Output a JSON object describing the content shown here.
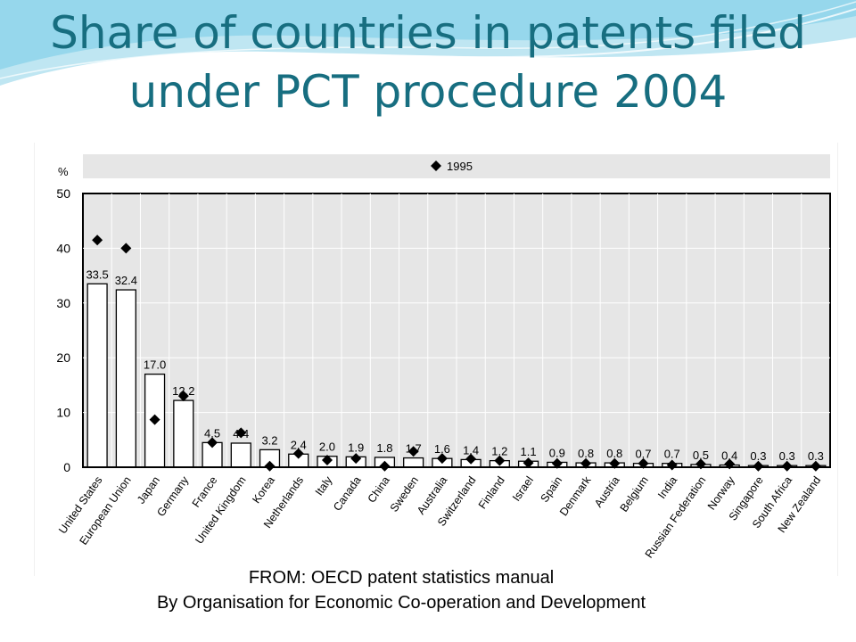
{
  "title_lines": [
    "Share of countries in patents filed",
    "under PCT procedure  2004"
  ],
  "source_lines": [
    "FROM: OECD patent statistics manual",
    "By Organisation for Economic Co-operation and Development"
  ],
  "colors": {
    "title": "#176e80",
    "bar_fill": "#ffffff",
    "bar_stroke": "#000000",
    "plot_bg": "#e6e6e6",
    "marker": "#000000",
    "wave_light": "#bfe6f2",
    "wave_mid": "#7fd0e8"
  },
  "chart_data": {
    "type": "bar",
    "y_unit_label": "%",
    "ylim": [
      0,
      50
    ],
    "yticks": [
      0,
      10,
      20,
      30,
      40,
      50
    ],
    "grid": true,
    "legend": {
      "position": "top",
      "entries": [
        {
          "marker": "diamond",
          "label": "1995"
        }
      ]
    },
    "categories": [
      "United States",
      "European Union",
      "Japan",
      "Germany",
      "France",
      "United Kingdom",
      "Korea",
      "Netherlands",
      "Italy",
      "Canada",
      "China",
      "Sweden",
      "Australia",
      "Switzerland",
      "Finland",
      "Israel",
      "Spain",
      "Denmark",
      "Austria",
      "Belgium",
      "India",
      "Russian Federation",
      "Norway",
      "Singapore",
      "South Africa",
      "New Zealand"
    ],
    "series": [
      {
        "kind": "bar",
        "values": [
          33.5,
          32.4,
          17.0,
          12.2,
          4.5,
          4.4,
          3.2,
          2.4,
          2.0,
          1.9,
          1.8,
          1.7,
          1.6,
          1.4,
          1.2,
          1.1,
          0.9,
          0.8,
          0.8,
          0.7,
          0.7,
          0.5,
          0.4,
          0.3,
          0.3,
          0.3
        ],
        "value_labels": [
          "33.5",
          "32.4",
          "17.0",
          "12.2",
          "4.5",
          "4.4",
          "3.2",
          "2.4",
          "2.0",
          "1.9",
          "1.8",
          "1.7",
          "1.6",
          "1.4",
          "1.2",
          "1.1",
          "0.9",
          "0.8",
          "0.8",
          "0.7",
          "0.7",
          "0.5",
          "0.4",
          "0.3",
          "0.3",
          "0.3"
        ]
      },
      {
        "name": "1995",
        "kind": "marker",
        "values": [
          41.5,
          40.0,
          8.7,
          13.0,
          4.5,
          6.3,
          0.2,
          2.5,
          1.3,
          1.6,
          0.2,
          2.9,
          1.6,
          1.5,
          1.2,
          0.8,
          0.7,
          0.7,
          0.7,
          0.7,
          0.4,
          0.6,
          0.6,
          0.2,
          0.2,
          0.2
        ]
      }
    ]
  }
}
